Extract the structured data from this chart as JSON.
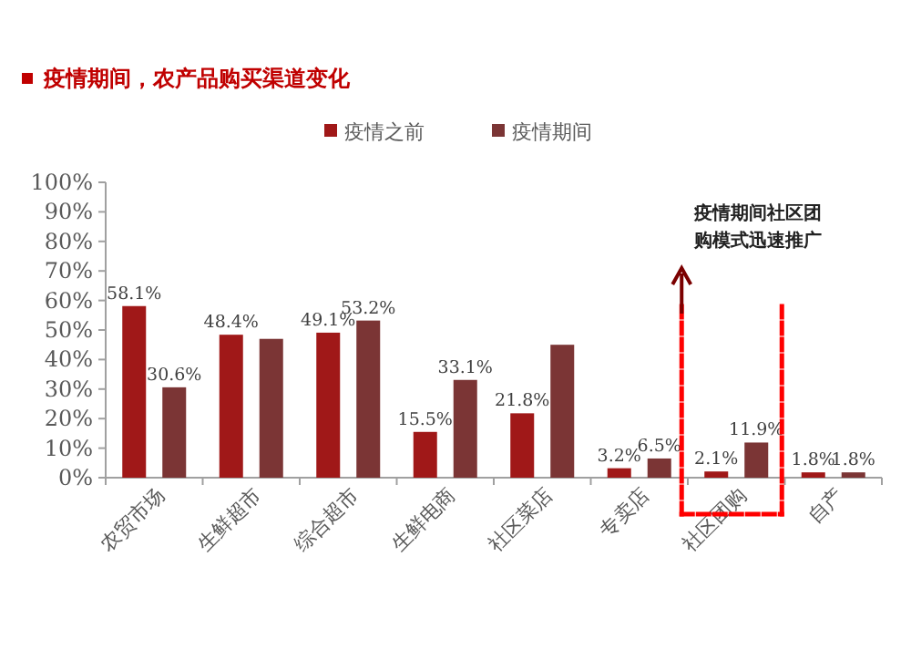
{
  "chart_data": {
    "type": "bar",
    "title": "疫情期间，农产品购买渠道变化",
    "categories": [
      "农贸市场",
      "生鲜超市",
      "综合超市",
      "生鲜电商",
      "社区菜店",
      "专卖店",
      "社区团购",
      "自产"
    ],
    "series": [
      {
        "name": "疫情之前",
        "color": "#a01818",
        "values": [
          58.1,
          48.4,
          49.1,
          15.5,
          21.8,
          3.2,
          2.1,
          1.8
        ]
      },
      {
        "name": "疫情期间",
        "color": "#7b3535",
        "values": [
          30.6,
          47,
          53.2,
          33.1,
          45,
          6.5,
          11.9,
          1.8
        ],
        "value_labels": [
          "30.6%",
          null,
          "53.2%",
          "33.1%",
          null,
          "6.5%",
          "11.9%",
          "1.8%"
        ]
      }
    ],
    "value_labels": [
      "58.1%",
      "48.4%",
      "49.1%",
      "15.5%",
      "21.8%",
      "3.2%",
      "2.1%",
      "1.8%"
    ],
    "ylim": [
      0,
      100
    ],
    "yticks": [
      {
        "value": 0,
        "label": "0%"
      },
      {
        "value": 10,
        "label": "10%"
      },
      {
        "value": 20,
        "label": "20%"
      },
      {
        "value": 30,
        "label": "30%"
      },
      {
        "value": 40,
        "label": "40%"
      },
      {
        "value": 50,
        "label": "50%"
      },
      {
        "value": 60,
        "label": "60%"
      },
      {
        "value": 70,
        "label": "70%"
      },
      {
        "value": 80,
        "label": "80%"
      },
      {
        "value": 90,
        "label": "90%"
      },
      {
        "value": 100,
        "label": "100%"
      }
    ],
    "annotations": [
      "疫情期间社区团购模式迅速推广"
    ],
    "legend": "top",
    "grid": false
  }
}
